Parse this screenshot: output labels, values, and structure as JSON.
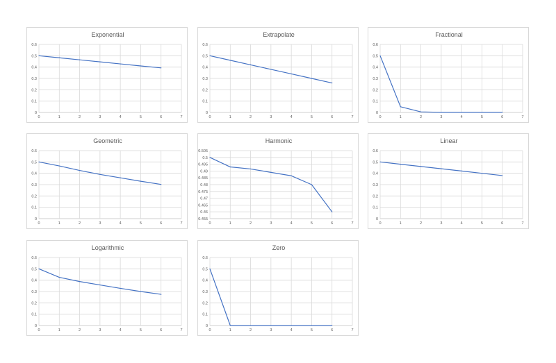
{
  "colors": {
    "series": "#4472c4",
    "grid": "#d9d9d9",
    "text": "#595959"
  },
  "chart_data": [
    {
      "type": "line",
      "title": "Exponential",
      "x": [
        0,
        1,
        2,
        3,
        4,
        5,
        6
      ],
      "values": [
        0.5,
        0.482,
        0.464,
        0.446,
        0.428,
        0.41,
        0.393
      ],
      "xlim": [
        0,
        7
      ],
      "ylim": [
        0,
        0.6
      ],
      "xticks": [
        "0",
        "1",
        "2",
        "3",
        "4",
        "5",
        "6",
        "7"
      ],
      "yticks": [
        "0",
        "0.1",
        "0.2",
        "0.3",
        "0.4",
        "0.5",
        "0.6"
      ],
      "grid": true
    },
    {
      "type": "line",
      "title": "Extrapolate",
      "x": [
        0,
        1,
        2,
        3,
        4,
        5,
        6
      ],
      "values": [
        0.5,
        0.46,
        0.42,
        0.38,
        0.34,
        0.3,
        0.26
      ],
      "xlim": [
        0,
        7
      ],
      "ylim": [
        0,
        0.6
      ],
      "xticks": [
        "0",
        "1",
        "2",
        "3",
        "4",
        "5",
        "6",
        "7"
      ],
      "yticks": [
        "0",
        "0.1",
        "0.2",
        "0.3",
        "0.4",
        "0.5",
        "0.6"
      ],
      "grid": true
    },
    {
      "type": "line",
      "title": "Fractional",
      "x": [
        0,
        1,
        2,
        3,
        4,
        5,
        6
      ],
      "values": [
        0.5,
        0.05,
        0.005,
        0.001,
        0.001,
        0.001,
        0.001
      ],
      "xlim": [
        0,
        7
      ],
      "ylim": [
        0,
        0.6
      ],
      "xticks": [
        "0",
        "1",
        "2",
        "3",
        "4",
        "5",
        "6",
        "7"
      ],
      "yticks": [
        "0",
        "0.1",
        "0.2",
        "0.3",
        "0.4",
        "0.5",
        "0.6"
      ],
      "grid": true
    },
    {
      "type": "line",
      "title": "Geometric",
      "x": [
        0,
        1,
        2,
        3,
        4,
        5,
        6
      ],
      "values": [
        0.5,
        0.465,
        0.425,
        0.39,
        0.36,
        0.33,
        0.302
      ],
      "xlim": [
        0,
        7
      ],
      "ylim": [
        0,
        0.6
      ],
      "xticks": [
        "0",
        "1",
        "2",
        "3",
        "4",
        "5",
        "6",
        "7"
      ],
      "yticks": [
        "0",
        "0.1",
        "0.2",
        "0.3",
        "0.4",
        "0.5",
        "0.6"
      ],
      "grid": true
    },
    {
      "type": "line",
      "title": "Harmonic",
      "x": [
        0,
        1,
        2,
        3,
        4,
        5,
        6
      ],
      "values": [
        0.5,
        0.493,
        0.4915,
        0.489,
        0.4865,
        0.48,
        0.46
      ],
      "xlim": [
        0,
        7
      ],
      "ylim": [
        0.455,
        0.505
      ],
      "xticks": [
        "0",
        "1",
        "2",
        "3",
        "4",
        "5",
        "6",
        "7"
      ],
      "yticks": [
        "0.455",
        "0.46",
        "0.465",
        "0.47",
        "0.475",
        "0.48",
        "0.485",
        "0.49",
        "0.495",
        "0.5",
        "0.505"
      ],
      "grid": true
    },
    {
      "type": "line",
      "title": "Linear",
      "x": [
        0,
        1,
        2,
        3,
        4,
        5,
        6
      ],
      "values": [
        0.5,
        0.48,
        0.46,
        0.44,
        0.42,
        0.4,
        0.38
      ],
      "xlim": [
        0,
        7
      ],
      "ylim": [
        0,
        0.6
      ],
      "xticks": [
        "0",
        "1",
        "2",
        "3",
        "4",
        "5",
        "6",
        "7"
      ],
      "yticks": [
        "0",
        "0.1",
        "0.2",
        "0.3",
        "0.4",
        "0.5",
        "0.6"
      ],
      "grid": true
    },
    {
      "type": "line",
      "title": "Logarithmic",
      "x": [
        0,
        1,
        2,
        3,
        4,
        5,
        6
      ],
      "values": [
        0.5,
        0.425,
        0.388,
        0.358,
        0.328,
        0.3,
        0.275
      ],
      "xlim": [
        0,
        7
      ],
      "ylim": [
        0,
        0.6
      ],
      "xticks": [
        "0",
        "1",
        "2",
        "3",
        "4",
        "5",
        "6",
        "7"
      ],
      "yticks": [
        "0",
        "0.1",
        "0.2",
        "0.3",
        "0.4",
        "0.5",
        "0.6"
      ],
      "grid": true
    },
    {
      "type": "line",
      "title": "Zero",
      "x": [
        0,
        1,
        2,
        3,
        4,
        5,
        6
      ],
      "values": [
        0.5,
        0,
        0,
        0,
        0,
        0,
        0
      ],
      "xlim": [
        0,
        7
      ],
      "ylim": [
        0,
        0.6
      ],
      "xticks": [
        "0",
        "1",
        "2",
        "3",
        "4",
        "5",
        "6",
        "7"
      ],
      "yticks": [
        "0",
        "0.1",
        "0.2",
        "0.3",
        "0.4",
        "0.5",
        "0.6"
      ],
      "grid": true
    }
  ]
}
